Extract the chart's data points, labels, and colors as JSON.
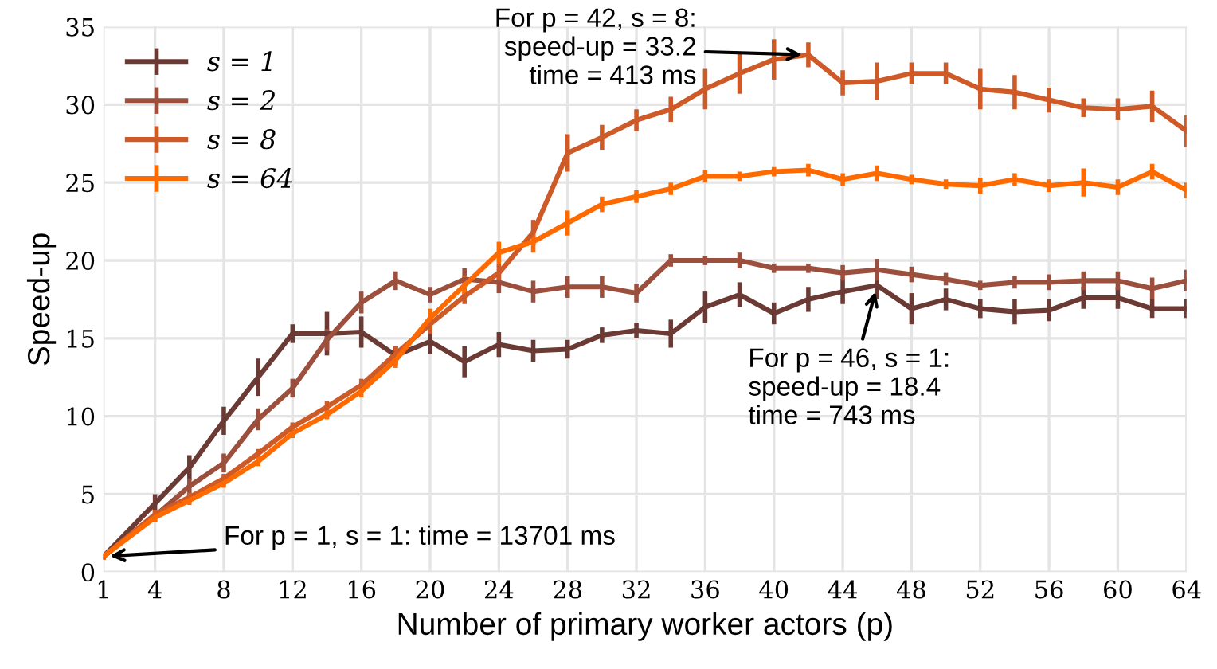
{
  "chart_data": {
    "type": "line",
    "xlabel": "Number of primary worker actors (p)",
    "ylabel": "Speed-up",
    "x": [
      1,
      4,
      6,
      8,
      10,
      12,
      14,
      16,
      18,
      20,
      22,
      24,
      26,
      28,
      30,
      32,
      34,
      36,
      38,
      40,
      42,
      44,
      46,
      48,
      50,
      52,
      54,
      56,
      58,
      60,
      62,
      64
    ],
    "series": [
      {
        "name": "s = 1",
        "color": "#6b3a34",
        "values": [
          1.0,
          4.4,
          6.7,
          9.7,
          12.5,
          15.3,
          15.3,
          15.4,
          13.9,
          14.8,
          13.5,
          14.6,
          14.2,
          14.3,
          15.2,
          15.5,
          15.3,
          17.0,
          17.8,
          16.6,
          17.5,
          18.0,
          18.4,
          16.9,
          17.5,
          16.9,
          16.7,
          16.8,
          17.6,
          17.6,
          16.9,
          16.9
        ],
        "errors": [
          0.2,
          0.6,
          0.8,
          0.9,
          1.2,
          0.6,
          1.4,
          1.0,
          0.6,
          0.8,
          1.0,
          0.8,
          0.7,
          0.6,
          0.5,
          0.5,
          0.9,
          1.0,
          0.8,
          0.7,
          0.8,
          0.8,
          0.9,
          1.0,
          0.7,
          0.6,
          0.8,
          0.7,
          0.7,
          0.7,
          0.6,
          0.6
        ]
      },
      {
        "name": "s = 2",
        "color": "#9c4f3c",
        "values": [
          1.0,
          3.6,
          5.5,
          7.0,
          9.8,
          11.8,
          14.9,
          17.3,
          18.7,
          17.8,
          18.8,
          18.6,
          18.0,
          18.3,
          18.3,
          17.9,
          20.0,
          20.0,
          20.0,
          19.5,
          19.5,
          19.2,
          19.4,
          19.1,
          18.8,
          18.4,
          18.6,
          18.6,
          18.7,
          18.7,
          18.2,
          18.7
        ],
        "errors": [
          0.2,
          0.4,
          0.5,
          0.6,
          0.7,
          0.6,
          0.7,
          0.7,
          0.6,
          0.5,
          0.7,
          0.7,
          0.7,
          0.7,
          0.7,
          0.6,
          0.4,
          0.3,
          0.5,
          0.3,
          0.3,
          0.5,
          0.7,
          0.5,
          0.4,
          0.3,
          0.4,
          0.5,
          0.6,
          0.6,
          0.7,
          0.7
        ]
      },
      {
        "name": "s = 8",
        "color": "#cd5a27",
        "values": [
          1.0,
          3.7,
          4.8,
          6.0,
          7.6,
          9.3,
          10.6,
          12.0,
          14.0,
          15.9,
          17.7,
          19.2,
          21.8,
          26.9,
          27.9,
          29.0,
          29.7,
          31.0,
          32.0,
          32.9,
          33.2,
          31.4,
          31.5,
          32.0,
          32.0,
          31.0,
          30.8,
          30.3,
          29.8,
          29.7,
          29.9,
          28.3
        ],
        "errors": [
          0.2,
          0.3,
          0.3,
          0.3,
          0.3,
          0.3,
          0.4,
          0.4,
          0.5,
          0.6,
          0.5,
          0.6,
          0.8,
          1.2,
          0.8,
          0.7,
          0.8,
          1.3,
          1.3,
          1.3,
          0.8,
          0.8,
          1.2,
          0.7,
          0.7,
          1.3,
          1.1,
          0.8,
          0.6,
          0.7,
          1.0,
          1.0
        ]
      },
      {
        "name": "s = 64",
        "color": "#ff6a00",
        "values": [
          1.0,
          3.5,
          4.6,
          5.7,
          7.1,
          8.9,
          10.1,
          11.6,
          13.6,
          16.3,
          18.4,
          20.5,
          21.2,
          22.4,
          23.6,
          24.1,
          24.6,
          25.4,
          25.4,
          25.7,
          25.8,
          25.2,
          25.6,
          25.2,
          24.9,
          24.8,
          25.2,
          24.8,
          25.0,
          24.7,
          25.7,
          24.5
        ],
        "errors": [
          0.2,
          0.3,
          0.3,
          0.3,
          0.3,
          0.3,
          0.3,
          0.4,
          0.5,
          0.6,
          0.6,
          0.7,
          0.7,
          0.8,
          0.5,
          0.4,
          0.4,
          0.4,
          0.3,
          0.3,
          0.4,
          0.4,
          0.5,
          0.3,
          0.3,
          0.5,
          0.4,
          0.4,
          0.9,
          0.5,
          0.5,
          0.5
        ]
      }
    ],
    "xlim": [
      1,
      64
    ],
    "xticks": [
      1,
      4,
      8,
      12,
      16,
      20,
      24,
      28,
      32,
      36,
      40,
      44,
      48,
      52,
      56,
      60,
      64
    ],
    "ylim": [
      0,
      35
    ],
    "yticks": [
      0,
      5,
      10,
      15,
      20,
      25,
      30,
      35
    ],
    "grid": true,
    "legend": "top left",
    "marker": "none",
    "line_style": "solid",
    "annotations": [
      {
        "text": "For p = 42, s = 8:\nspeed-up = 33.2\ntime = 413 ms",
        "x": 42,
        "y": 33.2
      },
      {
        "text": "For p = 46, s = 1:\nspeed-up = 18.4\ntime = 743 ms",
        "x": 46,
        "y": 18.4
      },
      {
        "text": "For p = 1, s = 1: time = 13701 ms",
        "x": 1,
        "y": 1.0
      }
    ]
  }
}
